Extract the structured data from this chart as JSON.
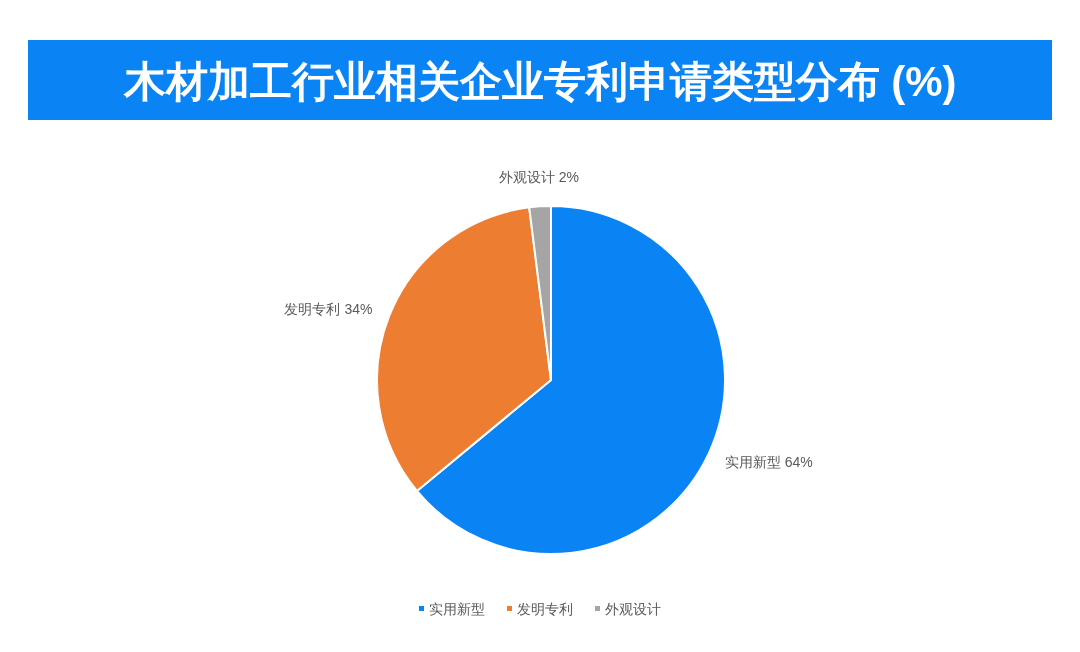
{
  "chart_data": {
    "type": "pie",
    "title": "木材加工行业相关企业专利申请类型分布 (%)",
    "categories": [
      "实用新型",
      "发明专利",
      "外观设计"
    ],
    "values": [
      64,
      34,
      2
    ],
    "value_labels": [
      "64%",
      "34%",
      "2%"
    ],
    "colors": [
      "#0a84f5",
      "#ed7d31",
      "#a5a5a5"
    ],
    "legend": "bottom"
  }
}
